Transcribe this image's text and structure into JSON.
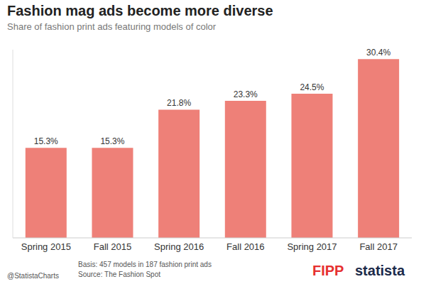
{
  "chart_data": {
    "type": "bar",
    "title": "Fashion mag ads become more diverse",
    "subtitle": "Share of fashion print ads featuring models of color",
    "categories": [
      "Spring 2015",
      "Fall 2015",
      "Spring 2016",
      "Fall 2016",
      "Spring 2017",
      "Fall 2017"
    ],
    "values": [
      15.3,
      15.3,
      21.8,
      23.3,
      24.5,
      30.4
    ],
    "value_labels": [
      "15.3%",
      "15.3%",
      "21.8%",
      "23.3%",
      "24.5%",
      "30.4%"
    ],
    "color": "#ee8078",
    "ylim": [
      0,
      32
    ],
    "data_labels": true,
    "tick_labels": "x",
    "grid": false,
    "annotations": [
      "Basis: 457 models in 187 fashion print ads",
      "Source: The Fashion Spot",
      "@StatistaCharts",
      "FIPP",
      "statista"
    ]
  }
}
